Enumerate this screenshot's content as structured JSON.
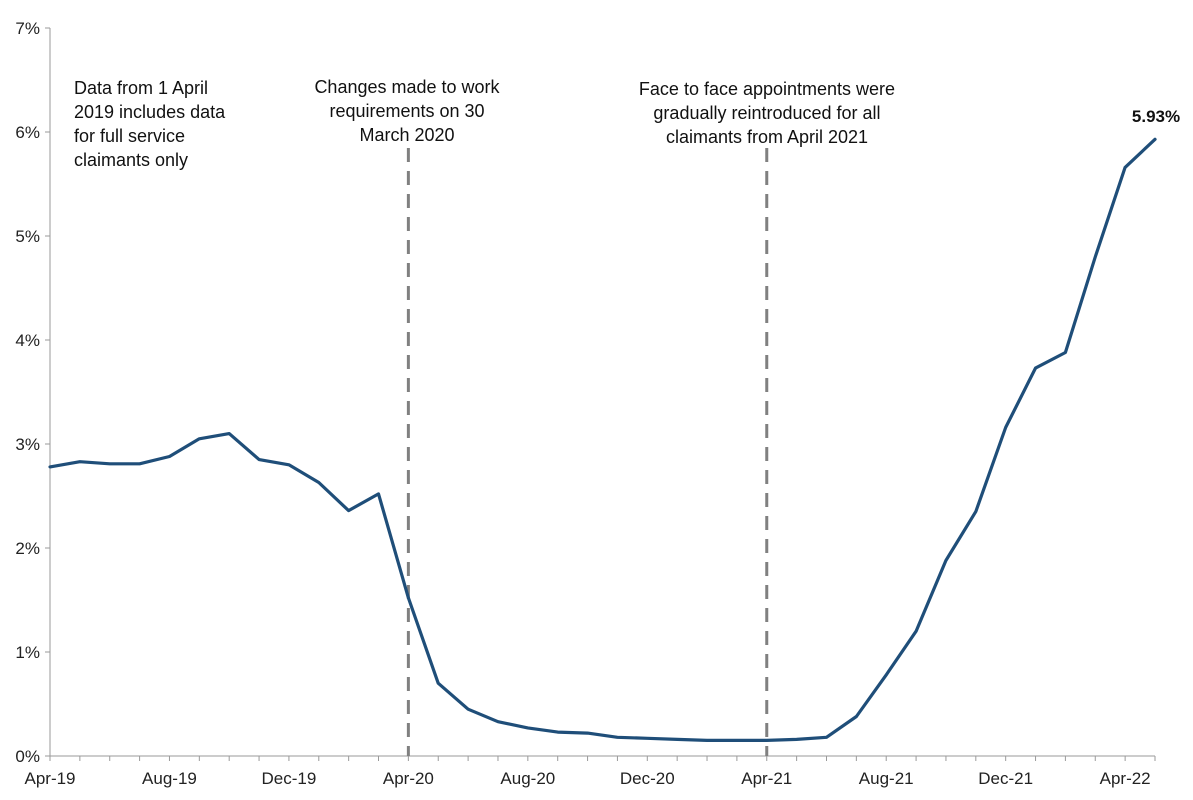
{
  "chart_data": {
    "type": "line",
    "title": "",
    "xlabel": "",
    "ylabel": "",
    "ylim": [
      0,
      7
    ],
    "y_ticks": [
      "0%",
      "1%",
      "2%",
      "3%",
      "4%",
      "5%",
      "6%",
      "7%"
    ],
    "grid": false,
    "x_tick_labels": [
      "Apr-19",
      "Aug-19",
      "Dec-19",
      "Apr-20",
      "Aug-20",
      "Dec-20",
      "Apr-21",
      "Aug-21",
      "Dec-21",
      "Apr-22"
    ],
    "series": [
      {
        "color": "#1f4e79",
        "x": [
          "Apr-19",
          "May-19",
          "Jun-19",
          "Jul-19",
          "Aug-19",
          "Sep-19",
          "Oct-19",
          "Nov-19",
          "Dec-19",
          "Jan-20",
          "Feb-20",
          "Mar-20",
          "Apr-20",
          "May-20",
          "Jun-20",
          "Jul-20",
          "Aug-20",
          "Sep-20",
          "Oct-20",
          "Nov-20",
          "Dec-20",
          "Jan-21",
          "Feb-21",
          "Mar-21",
          "Apr-21",
          "May-21",
          "Jun-21",
          "Jul-21",
          "Aug-21",
          "Sep-21",
          "Oct-21",
          "Nov-21",
          "Dec-21",
          "Jan-22",
          "Feb-22",
          "Mar-22",
          "Apr-22",
          "May-22"
        ],
        "values": [
          2.78,
          2.83,
          2.81,
          2.81,
          2.88,
          3.05,
          3.1,
          2.85,
          2.8,
          2.63,
          2.36,
          2.52,
          1.52,
          0.7,
          0.45,
          0.33,
          0.27,
          0.23,
          0.22,
          0.18,
          0.17,
          0.16,
          0.15,
          0.15,
          0.15,
          0.16,
          0.18,
          0.38,
          0.78,
          1.2,
          1.88,
          2.35,
          3.16,
          3.73,
          3.88,
          4.8,
          5.66,
          5.93
        ]
      }
    ],
    "vertical_markers": [
      {
        "x": "Apr-20",
        "style": "dashed",
        "color": "#808080"
      },
      {
        "x": "Apr-21",
        "style": "dashed",
        "color": "#808080"
      }
    ],
    "annotations": [
      {
        "id": "a1",
        "lines": [
          "Data from 1 April",
          "2019 includes data",
          "for full service",
          "claimants only"
        ]
      },
      {
        "id": "a2",
        "lines": [
          "Changes made to work",
          "requirements on 30",
          "March 2020"
        ]
      },
      {
        "id": "a3",
        "lines": [
          "Face to face appointments were",
          "gradually reintroduced for all",
          "claimants from April 2021"
        ]
      }
    ],
    "end_label": "5.93%"
  }
}
